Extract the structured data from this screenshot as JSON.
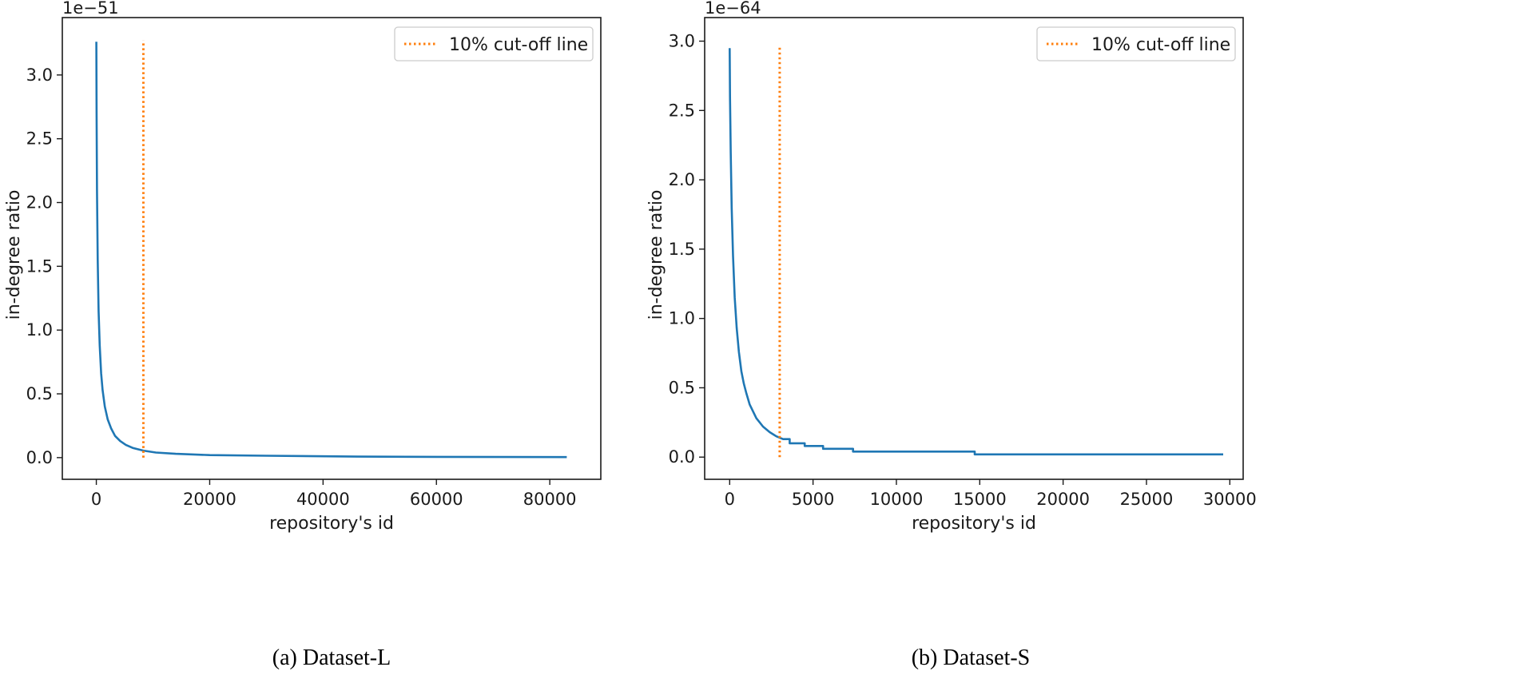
{
  "colors": {
    "series": "#1f77b4",
    "cutoff": "#ff7f0e"
  },
  "chart_data": [
    {
      "type": "line",
      "caption": "(a)  Dataset-L",
      "xlabel": "repository's id",
      "ylabel": "in-degree ratio",
      "offset_text": "1e−51",
      "xlim": [
        -6000,
        89000
      ],
      "ylim": [
        -0.17,
        3.45
      ],
      "xticks": [
        0,
        20000,
        40000,
        60000,
        80000
      ],
      "xtick_labels": [
        "0",
        "20000",
        "40000",
        "60000",
        "80000"
      ],
      "yticks": [
        0.0,
        0.5,
        1.0,
        1.5,
        2.0,
        2.5,
        3.0
      ],
      "ytick_labels": [
        "0.0",
        "0.5",
        "1.0",
        "1.5",
        "2.0",
        "2.5",
        "3.0"
      ],
      "legend": {
        "label": "10% cut-off line",
        "position": "top-right"
      },
      "cutoff_x": 8300,
      "cutoff_y": [
        0.0,
        3.27
      ],
      "series": [
        {
          "name": "in-degree ratio",
          "x": [
            0,
            40,
            120,
            250,
            400,
            600,
            850,
            1100,
            1500,
            2000,
            2600,
            3300,
            4200,
            5200,
            6500,
            8300,
            10500,
            14000,
            20000,
            30000,
            46000,
            60000,
            83000
          ],
          "y": [
            3.26,
            2.7,
            2.1,
            1.55,
            1.15,
            0.88,
            0.66,
            0.53,
            0.4,
            0.3,
            0.23,
            0.17,
            0.13,
            0.1,
            0.075,
            0.055,
            0.04,
            0.03,
            0.02,
            0.015,
            0.008,
            0.006,
            0.004
          ]
        }
      ]
    },
    {
      "type": "line",
      "caption": "(b) Dataset-S",
      "xlabel": "repository's id",
      "ylabel": "in-degree ratio",
      "offset_text": "1e−64",
      "xlim": [
        -1500,
        30800
      ],
      "ylim": [
        -0.16,
        3.17
      ],
      "xticks": [
        0,
        5000,
        10000,
        15000,
        20000,
        25000,
        30000
      ],
      "xtick_labels": [
        "0",
        "5000",
        "10000",
        "15000",
        "20000",
        "25000",
        "30000"
      ],
      "yticks": [
        0.0,
        0.5,
        1.0,
        1.5,
        2.0,
        2.5,
        3.0
      ],
      "ytick_labels": [
        "0.0",
        "0.5",
        "1.0",
        "1.5",
        "2.0",
        "2.5",
        "3.0"
      ],
      "legend": {
        "label": "10% cut-off line",
        "position": "top-right"
      },
      "cutoff_x": 3000,
      "cutoff_y": [
        0.0,
        2.97
      ],
      "series": [
        {
          "name": "in-degree ratio",
          "x": [
            0,
            20,
            60,
            120,
            200,
            300,
            420,
            550,
            700,
            850,
            1000,
            1200,
            1400,
            1600,
            1800,
            2000,
            2200,
            2400,
            2600,
            2800,
            3000,
            3200,
            3600,
            3600,
            4500,
            4500,
            5600,
            5600,
            7400,
            7400,
            14700,
            14700,
            29600
          ],
          "y": [
            2.95,
            2.6,
            2.2,
            1.8,
            1.45,
            1.15,
            0.93,
            0.76,
            0.62,
            0.53,
            0.46,
            0.38,
            0.33,
            0.28,
            0.25,
            0.22,
            0.2,
            0.18,
            0.165,
            0.15,
            0.14,
            0.13,
            0.13,
            0.1,
            0.1,
            0.08,
            0.08,
            0.06,
            0.06,
            0.04,
            0.04,
            0.02,
            0.02
          ]
        }
      ]
    }
  ]
}
